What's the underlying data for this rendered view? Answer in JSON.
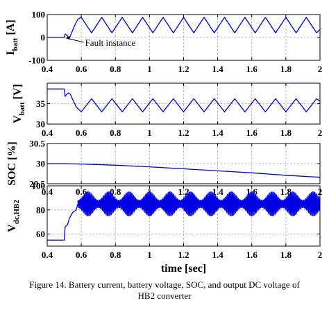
{
  "caption": {
    "line1": "Figure 14. Battery current, battery voltage, SOC, and output DC voltage of",
    "line2": "HB2 converter"
  },
  "colors": {
    "trace": "#0000e0",
    "axis": "#000000",
    "grid": "#9a9a9a"
  },
  "chart_data": [
    {
      "type": "line",
      "id": "ibatt",
      "ylabel_main": "I",
      "ylabel_sub": "batt",
      "ylabel_unit": " [A]",
      "xlim": [
        0.4,
        2.0
      ],
      "ylim": [
        -100,
        100
      ],
      "yticks": [
        "100",
        "0",
        "-100"
      ],
      "grid": true,
      "annotation": {
        "text": "Fault instance",
        "x": 0.5,
        "y": 0
      },
      "series": [
        {
          "points": [
            [
              0.4,
              0
            ],
            [
              0.5,
              0
            ],
            [
              0.505,
              15
            ],
            [
              0.515,
              10
            ],
            [
              0.525,
              0
            ],
            [
              0.53,
              -5
            ],
            [
              0.54,
              15
            ],
            [
              0.56,
              50
            ],
            [
              0.58,
              80
            ],
            [
              0.6,
              88
            ],
            [
              0.66,
              20
            ],
            [
              0.72,
              88
            ],
            [
              0.78,
              20
            ],
            [
              0.84,
              88
            ],
            [
              0.9,
              20
            ],
            [
              0.96,
              88
            ],
            [
              1.02,
              20
            ],
            [
              1.08,
              88
            ],
            [
              1.14,
              20
            ],
            [
              1.2,
              88
            ],
            [
              1.26,
              20
            ],
            [
              1.32,
              88
            ],
            [
              1.38,
              20
            ],
            [
              1.44,
              88
            ],
            [
              1.5,
              20
            ],
            [
              1.56,
              88
            ],
            [
              1.62,
              20
            ],
            [
              1.68,
              88
            ],
            [
              1.74,
              20
            ],
            [
              1.8,
              88
            ],
            [
              1.86,
              20
            ],
            [
              1.92,
              88
            ],
            [
              1.98,
              20
            ],
            [
              2.0,
              35
            ]
          ]
        }
      ]
    },
    {
      "type": "line",
      "id": "vbatt",
      "ylabel_main": "V",
      "ylabel_sub": "batt",
      "ylabel_unit": " [V]",
      "xlim": [
        0.4,
        2.0
      ],
      "ylim": [
        30,
        40
      ],
      "yticks": [
        "35",
        "30"
      ],
      "grid": true,
      "series": [
        {
          "points": [
            [
              0.4,
              38.6
            ],
            [
              0.5,
              38.6
            ],
            [
              0.505,
              36.8
            ],
            [
              0.515,
              37.3
            ],
            [
              0.525,
              37.6
            ],
            [
              0.535,
              37.3
            ],
            [
              0.55,
              36.0
            ],
            [
              0.57,
              34.2
            ],
            [
              0.6,
              33.0
            ],
            [
              0.66,
              36.2
            ],
            [
              0.72,
              33.0
            ],
            [
              0.78,
              36.2
            ],
            [
              0.84,
              33.0
            ],
            [
              0.9,
              36.2
            ],
            [
              0.96,
              33.0
            ],
            [
              1.02,
              36.2
            ],
            [
              1.08,
              33.0
            ],
            [
              1.14,
              36.2
            ],
            [
              1.2,
              33.0
            ],
            [
              1.26,
              36.2
            ],
            [
              1.32,
              33.0
            ],
            [
              1.38,
              36.2
            ],
            [
              1.44,
              33.0
            ],
            [
              1.5,
              36.2
            ],
            [
              1.56,
              33.0
            ],
            [
              1.62,
              36.2
            ],
            [
              1.68,
              33.0
            ],
            [
              1.74,
              36.2
            ],
            [
              1.8,
              33.0
            ],
            [
              1.86,
              36.2
            ],
            [
              1.92,
              33.0
            ],
            [
              1.98,
              36.2
            ],
            [
              2.0,
              35.6
            ]
          ]
        }
      ]
    },
    {
      "type": "line",
      "id": "soc",
      "ylabel_main": "SOC [%]",
      "ylabel_sub": "",
      "ylabel_unit": "",
      "xlim": [
        0.4,
        2.0
      ],
      "ylim": [
        29.5,
        30.5
      ],
      "yticks": [
        "30.5",
        "30",
        "29.5"
      ],
      "grid": true,
      "series": [
        {
          "points": [
            [
              0.4,
              30.0
            ],
            [
              0.5,
              30.0
            ],
            [
              0.6,
              29.99
            ],
            [
              0.8,
              29.96
            ],
            [
              1.0,
              29.92
            ],
            [
              1.2,
              29.87
            ],
            [
              1.4,
              29.82
            ],
            [
              1.6,
              29.77
            ],
            [
              1.8,
              29.71
            ],
            [
              2.0,
              29.66
            ]
          ]
        }
      ]
    },
    {
      "type": "line",
      "id": "vdc",
      "ylabel_main": "V",
      "ylabel_sub": "dc,HB2",
      "ylabel_unit": "",
      "xlim": [
        0.4,
        2.0
      ],
      "ylim": [
        50,
        100
      ],
      "yticks": [
        "100",
        "80",
        "60"
      ],
      "xticks": [
        "0.4",
        "0.6",
        "0.8",
        "1",
        "1.2",
        "1.4",
        "1.6",
        "1.8",
        "2"
      ],
      "xlabel": "time [sec]",
      "grid": true,
      "envelope": {
        "center": 85,
        "min_amplitude": 3,
        "max_amplitude": 10,
        "beat_period": 0.12
      },
      "series": [
        {
          "points": [
            [
              0.4,
              55
            ],
            [
              0.5,
              55
            ],
            [
              0.505,
              66
            ],
            [
              0.52,
              68
            ],
            [
              0.53,
              73
            ],
            [
              0.55,
              78
            ],
            [
              0.57,
              80
            ],
            [
              0.58,
              85
            ]
          ]
        }
      ]
    }
  ]
}
